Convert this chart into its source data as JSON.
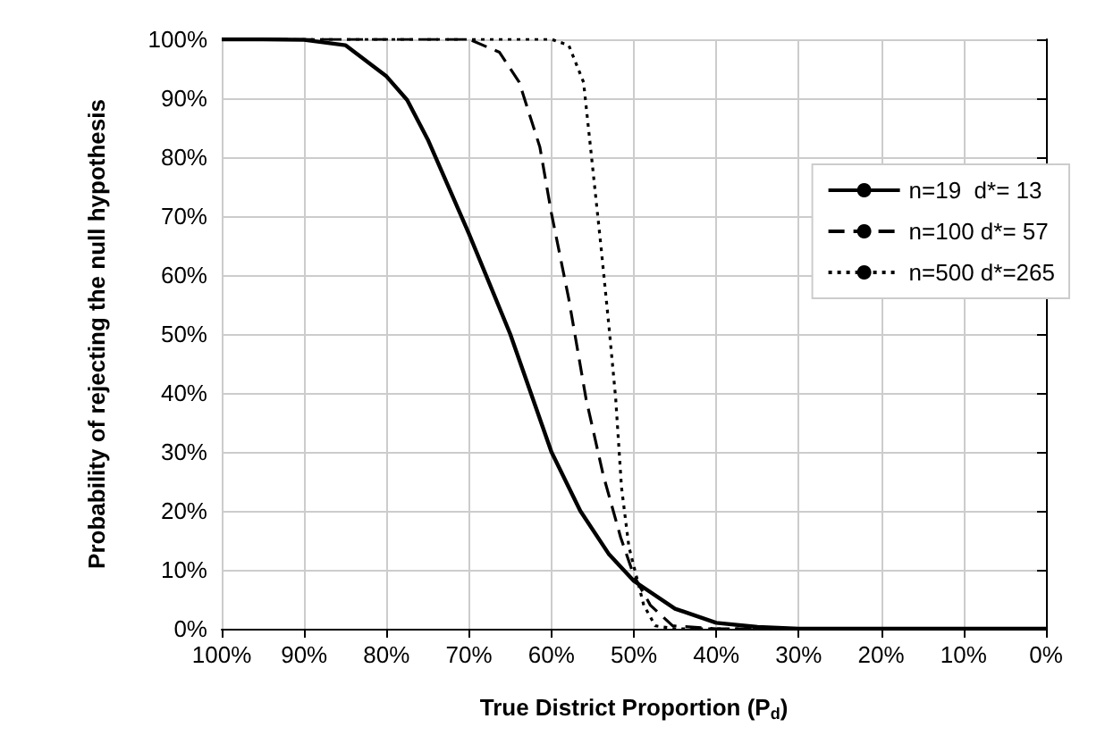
{
  "chart_data": {
    "type": "line",
    "xlabel": "True District Proportion (P$_{d}$)",
    "ylabel": "Probability of rejecting the null hypothesis",
    "xlim": [
      100,
      0
    ],
    "xticks": [
      {
        "value": 100,
        "label": "100%"
      },
      {
        "value": 90,
        "label": "90%"
      },
      {
        "value": 80,
        "label": "80%"
      },
      {
        "value": 70,
        "label": "70%"
      },
      {
        "value": 60,
        "label": "60%"
      },
      {
        "value": 50,
        "label": "50%"
      },
      {
        "value": 40,
        "label": "40%"
      },
      {
        "value": 30,
        "label": "30%"
      },
      {
        "value": 20,
        "label": "20%"
      },
      {
        "value": 10,
        "label": "10%"
      },
      {
        "value": 0,
        "label": "0%"
      }
    ],
    "ylim": [
      0,
      100
    ],
    "yticks": [
      {
        "value": 0,
        "label": "0%"
      },
      {
        "value": 10,
        "label": "10%"
      },
      {
        "value": 20,
        "label": "20%"
      },
      {
        "value": 30,
        "label": "30%"
      },
      {
        "value": 40,
        "label": "40%"
      },
      {
        "value": 50,
        "label": "50%"
      },
      {
        "value": 60,
        "label": "60%"
      },
      {
        "value": 70,
        "label": "70%"
      },
      {
        "value": 80,
        "label": "80%"
      },
      {
        "value": 90,
        "label": "90%"
      },
      {
        "value": 100,
        "label": "100%"
      }
    ],
    "grid": true,
    "legend": "top right",
    "marker": "none",
    "series": [
      {
        "name": "n=19  d*= 13",
        "color": "#000000",
        "line_style": "solid",
        "x": [
          100,
          95,
          90,
          85,
          80,
          77.5,
          75,
          70,
          67.5,
          65,
          62.5,
          60,
          56.5,
          53,
          50,
          45,
          40,
          35,
          30,
          20,
          10,
          0
        ],
        "values": [
          100,
          100,
          99.9,
          99,
          93.7,
          89.7,
          83,
          67,
          58.5,
          50,
          40,
          30,
          20,
          12.6,
          8.1,
          3.4,
          1,
          0.3,
          0,
          0,
          0,
          0
        ]
      },
      {
        "name": "n=100 d*= 57",
        "color": "#000000",
        "line_style": "dashed",
        "x": [
          100,
          90,
          80,
          70,
          66.3,
          63.9,
          61.4,
          60,
          57.9,
          55.8,
          53.7,
          51.6,
          50,
          48,
          45.3,
          40,
          30,
          20,
          10,
          0
        ],
        "values": [
          100,
          100,
          100,
          100,
          97.8,
          92.7,
          81.7,
          70.5,
          56,
          39,
          26,
          15.5,
          9,
          4,
          0.5,
          0,
          0,
          0,
          0,
          0
        ]
      },
      {
        "name": "n=500 d*=265",
        "color": "#000000",
        "line_style": "dotted",
        "x": [
          100,
          90,
          80,
          70,
          60,
          57.9,
          56.1,
          55.1,
          54,
          53,
          52.2,
          51.5,
          50.6,
          48.8,
          47.4,
          45,
          40,
          30,
          20,
          10,
          0
        ],
        "values": [
          100,
          100,
          100,
          100,
          100,
          99,
          92.7,
          79.6,
          65,
          51,
          39,
          24,
          13.9,
          4,
          0.5,
          0,
          0,
          0,
          0,
          0,
          0
        ]
      }
    ]
  }
}
